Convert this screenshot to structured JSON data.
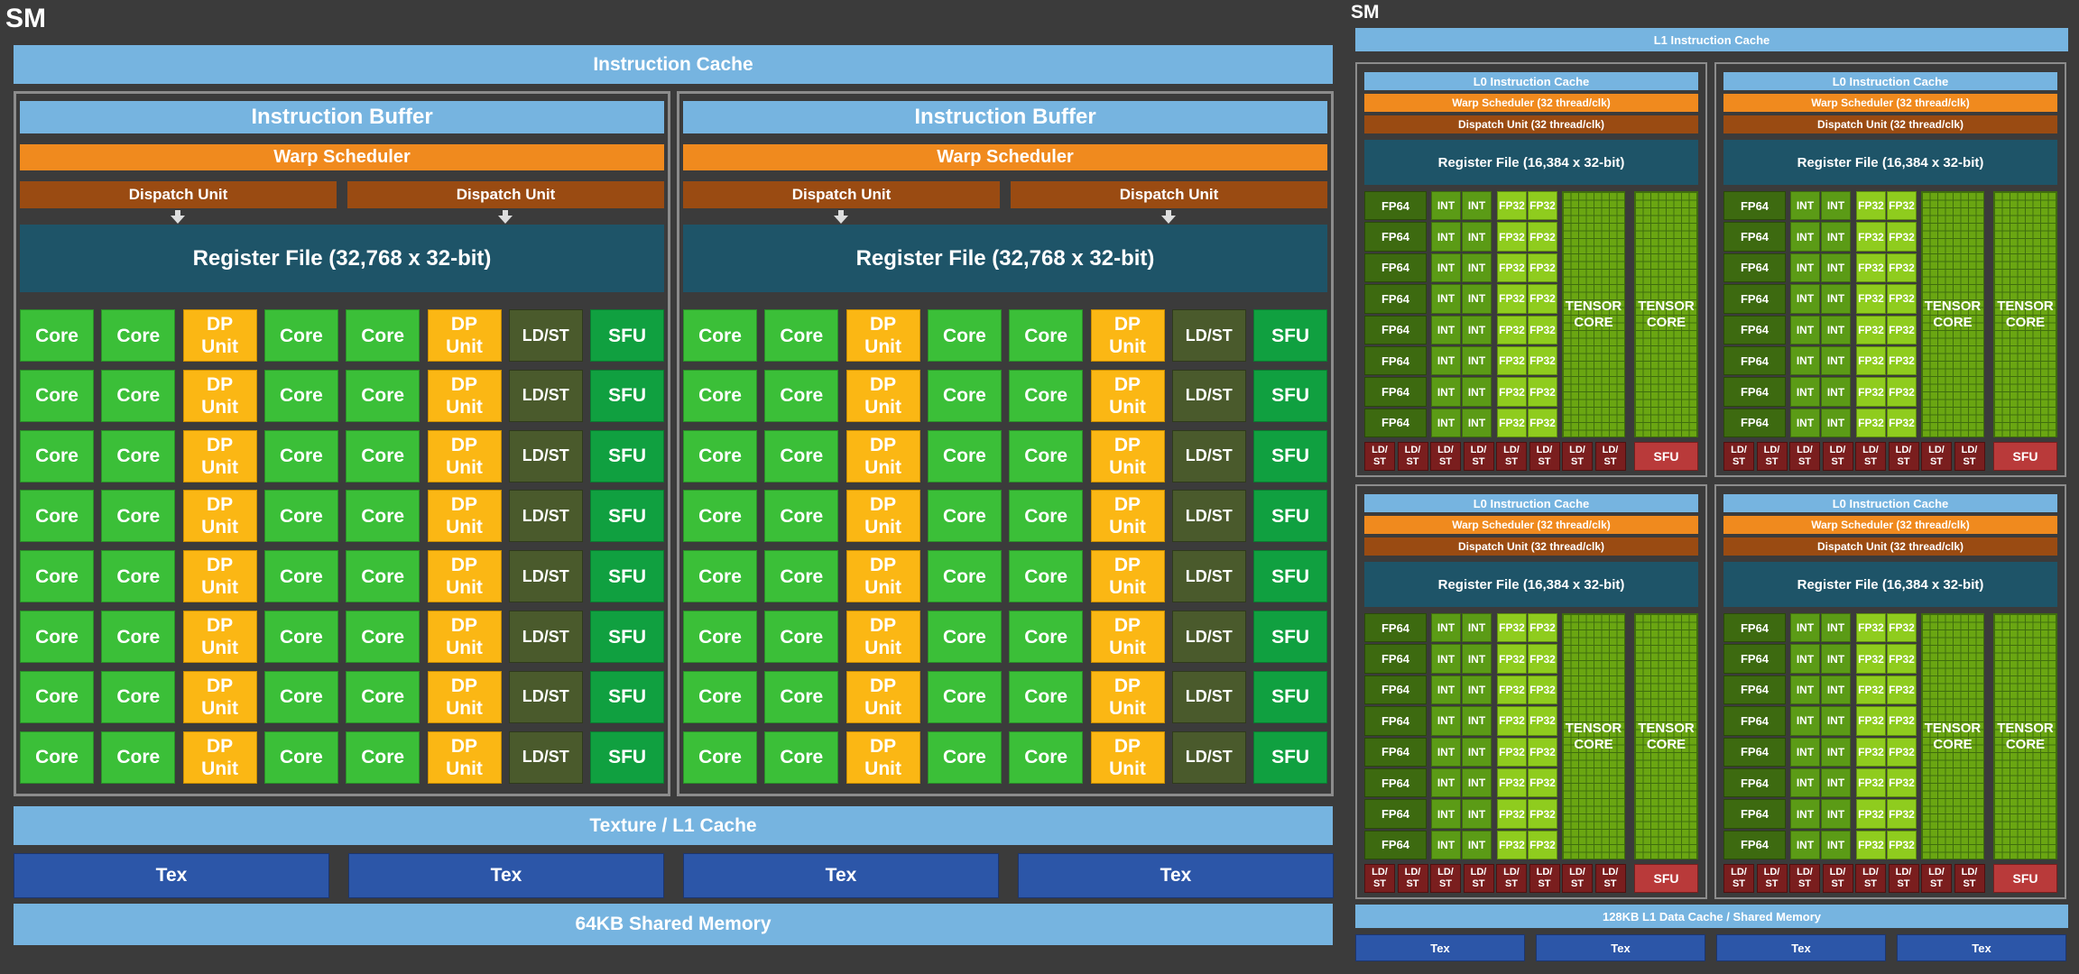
{
  "left": {
    "title": "SM",
    "instruction_cache": "Instruction Cache",
    "partition": {
      "instruction_buffer": "Instruction Buffer",
      "warp_scheduler": "Warp Scheduler",
      "dispatch_unit": "Dispatch Unit",
      "register_file": "Register File (32,768 x 32-bit)",
      "row_units": [
        "Core",
        "Core",
        "DP Unit",
        "Core",
        "Core",
        "DP Unit",
        "LD/ST",
        "SFU"
      ],
      "rows": 8
    },
    "texture_l1_cache": "Texture / L1 Cache",
    "tex": [
      "Tex",
      "Tex",
      "Tex",
      "Tex"
    ],
    "shared_memory": "64KB Shared Memory"
  },
  "right": {
    "title": "SM",
    "l1_instruction_cache": "L1 Instruction Cache",
    "block": {
      "l0_instruction_cache": "L0 Instruction Cache",
      "warp_scheduler": "Warp Scheduler (32 thread/clk)",
      "dispatch_unit": "Dispatch Unit (32 thread/clk)",
      "register_file": "Register File (16,384 x 32-bit)",
      "fp64": "FP64",
      "int": "INT",
      "fp32": "FP32",
      "tensor_core": "TENSOR CORE",
      "ldst": "LD/ ST",
      "sfu": "SFU",
      "rows": 8
    },
    "l1_data_cache": "128KB L1 Data Cache / Shared Memory",
    "tex": [
      "Tex",
      "Tex",
      "Tex",
      "Tex"
    ]
  },
  "colors": {
    "background": "#3b3b3b",
    "light_blue": "#76b4e0",
    "dark_blue": "#2c56a8",
    "orange": "#f08a1e",
    "brown": "#9a4b12",
    "teal": "#1e5468",
    "core_green": "#3bbf38",
    "dp_yellow": "#fbb714",
    "ldst_olive": "#4a5a2c",
    "sfu_green": "#10a040",
    "fp64_green": "#3d6a10",
    "int_green": "#5b9b16",
    "fp32_green": "#8fcc1e",
    "ldst_red": "#7a1e1e",
    "sfu_red": "#b93a3a"
  }
}
